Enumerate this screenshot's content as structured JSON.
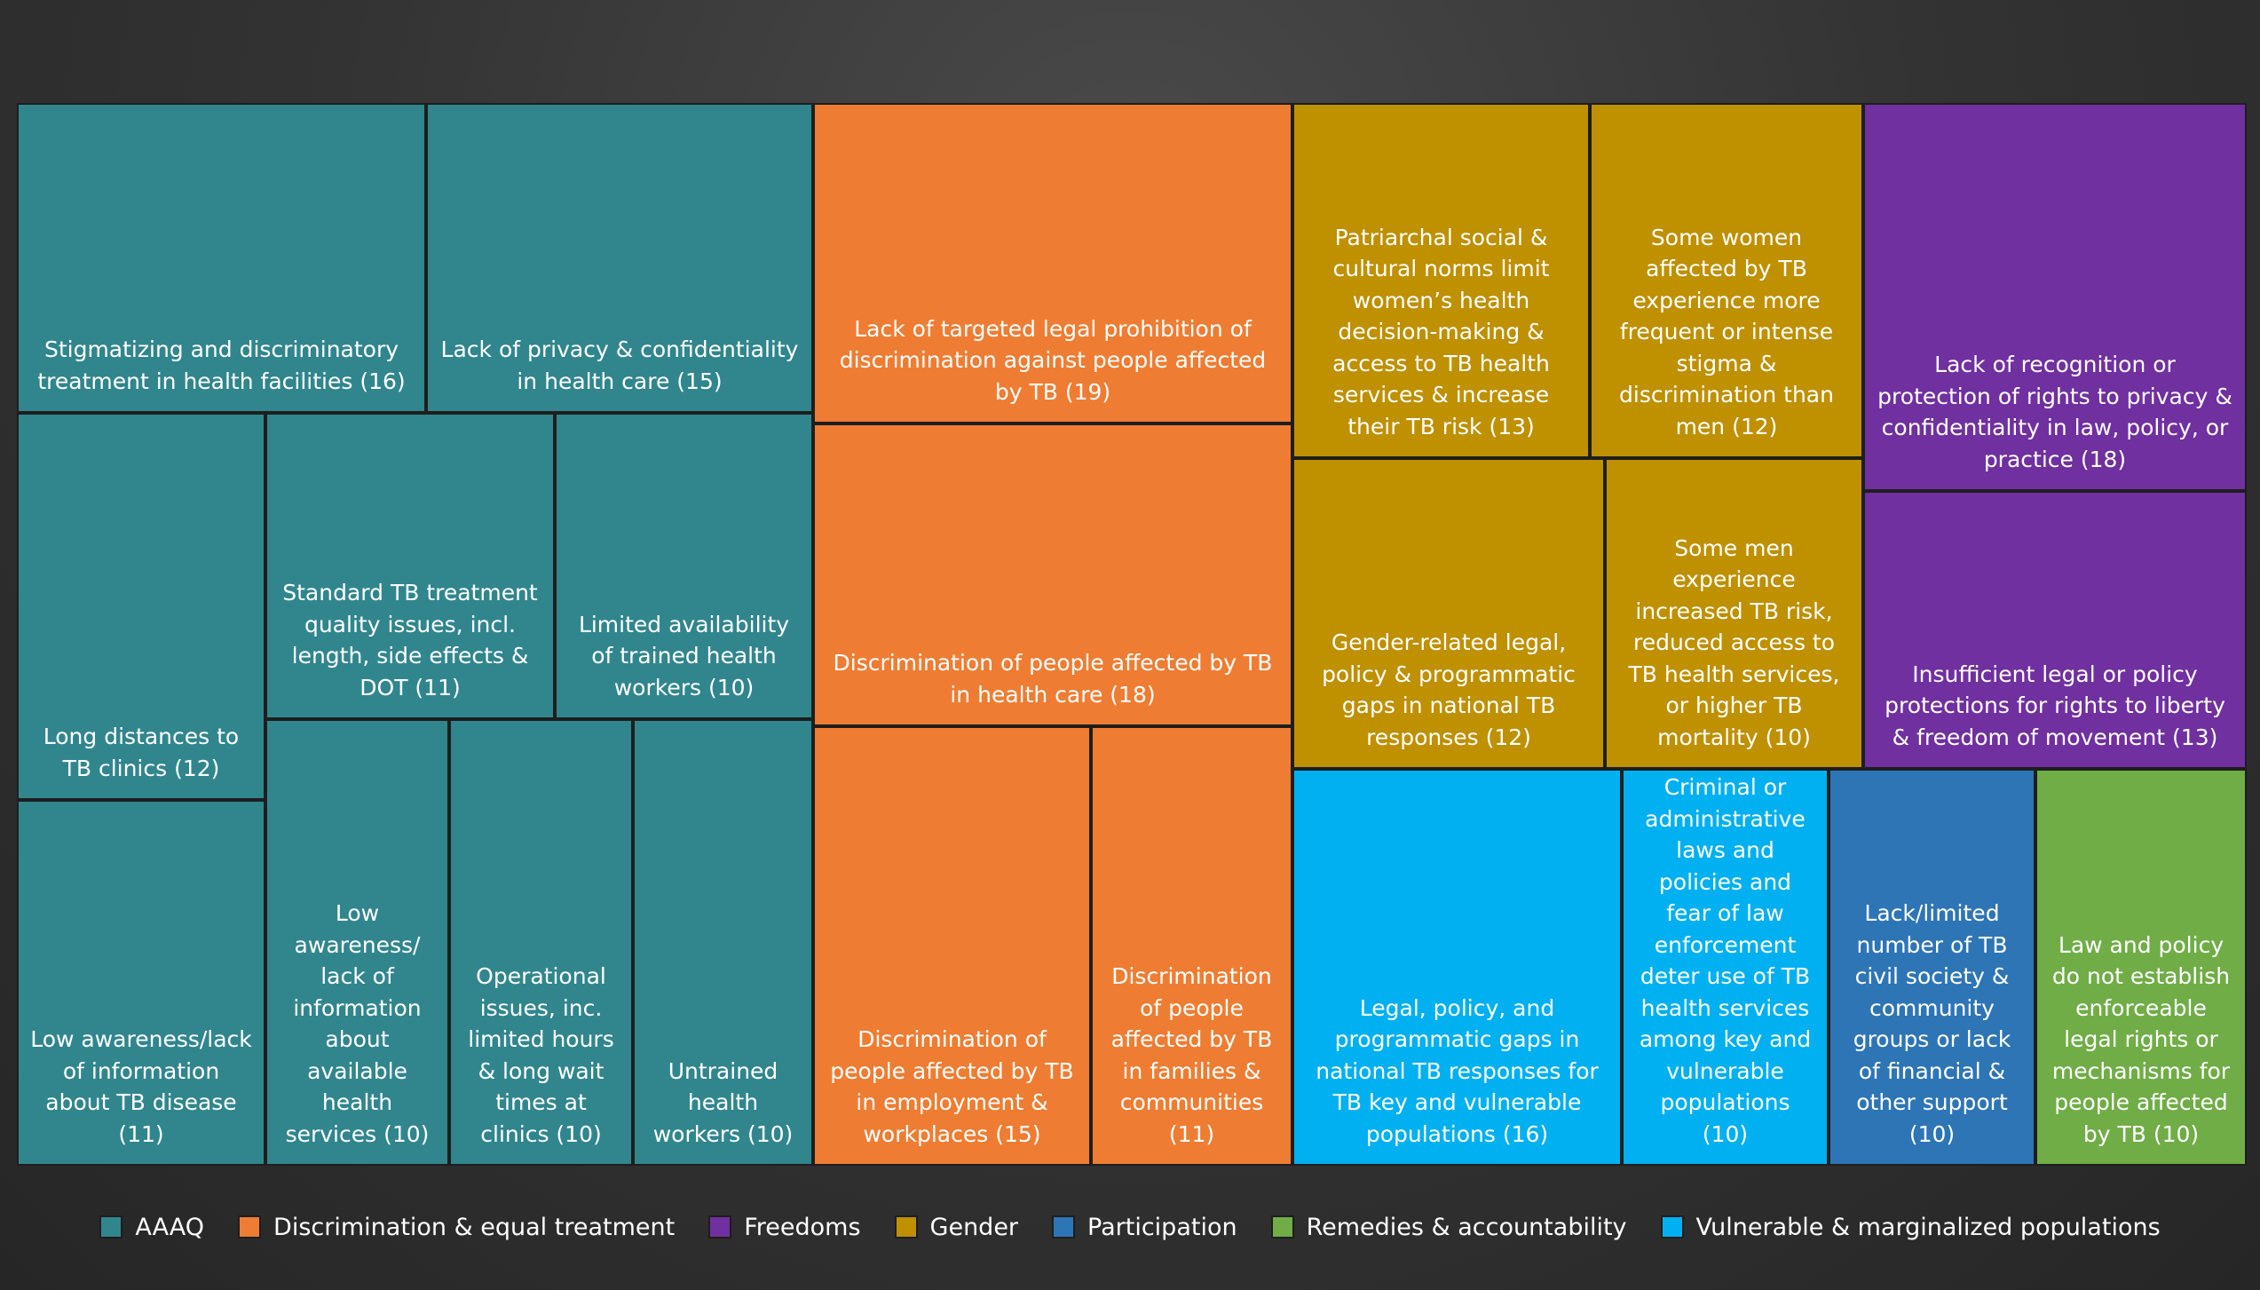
{
  "chart_data": {
    "type": "treemap",
    "categories": [
      {
        "id": "aaaq",
        "name": "AAAQ",
        "color": "#31868E"
      },
      {
        "id": "discrimination",
        "name": "Discrimination & equal treatment",
        "color": "#EE7D33"
      },
      {
        "id": "freedoms",
        "name": "Freedoms",
        "color": "#7030A0"
      },
      {
        "id": "gender",
        "name": "Gender",
        "color": "#BF9000"
      },
      {
        "id": "participation",
        "name": "Participation",
        "color": "#2E75B6"
      },
      {
        "id": "remedies",
        "name": "Remedies & accountability",
        "color": "#70AD47"
      },
      {
        "id": "vulnerable",
        "name": "Vulnerable & marginalized populations",
        "color": "#00B0F0"
      }
    ],
    "items": [
      {
        "category": "aaaq",
        "label": "Stigmatizing and discriminatory treatment in health facilities (16)",
        "value": 16
      },
      {
        "category": "aaaq",
        "label": "Lack of privacy & confidentiality in health care (15)",
        "value": 15
      },
      {
        "category": "aaaq",
        "label": "Long distances to TB clinics (12)",
        "value": 12
      },
      {
        "category": "aaaq",
        "label": "Low awareness/lack of information about TB disease (11)",
        "value": 11
      },
      {
        "category": "aaaq",
        "label": "Standard TB treatment quality issues, incl. length, side effects & DOT (11)",
        "value": 11
      },
      {
        "category": "aaaq",
        "label": "Limited availability of trained health workers (10)",
        "value": 10
      },
      {
        "category": "aaaq",
        "label": "Low awareness/ lack of information about available health services (10)",
        "value": 10
      },
      {
        "category": "aaaq",
        "label": "Operational issues, inc. limited hours & long wait times at clinics (10)",
        "value": 10
      },
      {
        "category": "aaaq",
        "label": "Untrained health workers (10)",
        "value": 10
      },
      {
        "category": "discrimination",
        "label": "Lack of targeted legal prohibition of discrimination against people affected by TB (19)",
        "value": 19
      },
      {
        "category": "discrimination",
        "label": "Discrimination of people affected by TB in health care (18)",
        "value": 18
      },
      {
        "category": "discrimination",
        "label": "Discrimination of people affected by TB in employment & workplaces (15)",
        "value": 15
      },
      {
        "category": "discrimination",
        "label": "Discrimination of people affected by TB in families & communities (11)",
        "value": 11
      },
      {
        "category": "gender",
        "label": "Patriarchal social & cultural norms limit women’s health decision-making & access to TB health services & increase their TB risk (13)",
        "value": 13
      },
      {
        "category": "gender",
        "label": "Some women affected by TB experience more frequent or intense stigma & discrimination than men (12)",
        "value": 12
      },
      {
        "category": "gender",
        "label": "Gender-related legal, policy & programmatic gaps in national TB responses (12)",
        "value": 12
      },
      {
        "category": "gender",
        "label": "Some men experience increased TB risk, reduced access to TB health services, or higher TB mortality (10)",
        "value": 10
      },
      {
        "category": "freedoms",
        "label": "Lack of recognition or protection of rights to privacy & confidentiality in law, policy, or practice (18)",
        "value": 18
      },
      {
        "category": "freedoms",
        "label": "Insufficient legal or policy protections for rights to liberty & freedom of movement (13)",
        "value": 13
      },
      {
        "category": "vulnerable",
        "label": "Legal, policy, and programmatic gaps in national TB responses for TB key and vulnerable populations (16)",
        "value": 16
      },
      {
        "category": "vulnerable",
        "label": "Criminal or administrative laws and policies and fear of law enforcement deter use of TB health services among key and vulnerable populations (10)",
        "value": 10
      },
      {
        "category": "participation",
        "label": "Lack/limited number of TB civil society & community groups or lack of financial & other support (10)",
        "value": 10
      },
      {
        "category": "remedies",
        "label": "Law and policy do not establish enforceable legal rights or mechanisms for people affected by TB (10)",
        "value": 10
      }
    ],
    "legend": {
      "placement": "bottom"
    }
  }
}
